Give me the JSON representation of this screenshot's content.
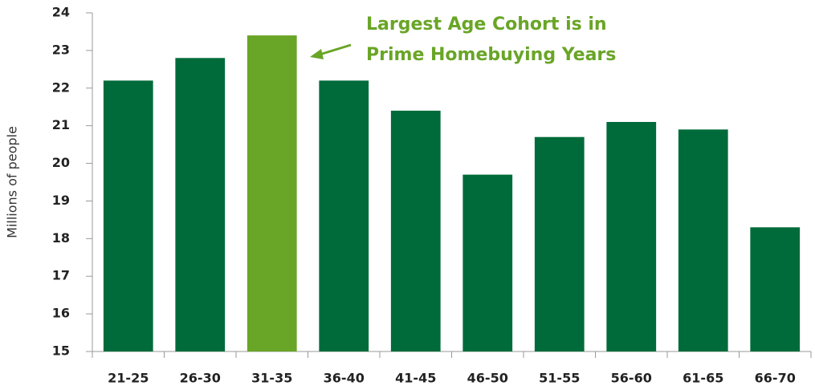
{
  "chart_data": {
    "type": "bar",
    "y_label": "Millions of people",
    "annotation": [
      "Largest Age Cohort is in",
      "Prime Homebuying Years"
    ],
    "categories": [
      "21-25",
      "26-30",
      "31-35",
      "36-40",
      "41-45",
      "46-50",
      "51-55",
      "56-60",
      "61-65",
      "66-70"
    ],
    "values": [
      22.2,
      22.8,
      23.4,
      22.2,
      21.4,
      19.7,
      20.7,
      21.1,
      20.9,
      18.3
    ],
    "colors": [
      "#006b3a",
      "#006b3a",
      "#69a526",
      "#006b3a",
      "#006b3a",
      "#006b3a",
      "#006b3a",
      "#006b3a",
      "#006b3a",
      "#006b3a"
    ],
    "annotation_color": "#69a526",
    "ylim": [
      15,
      24
    ],
    "yticks": [
      15,
      16,
      17,
      18,
      19,
      20,
      21,
      22,
      23,
      24
    ],
    "grid": false
  }
}
